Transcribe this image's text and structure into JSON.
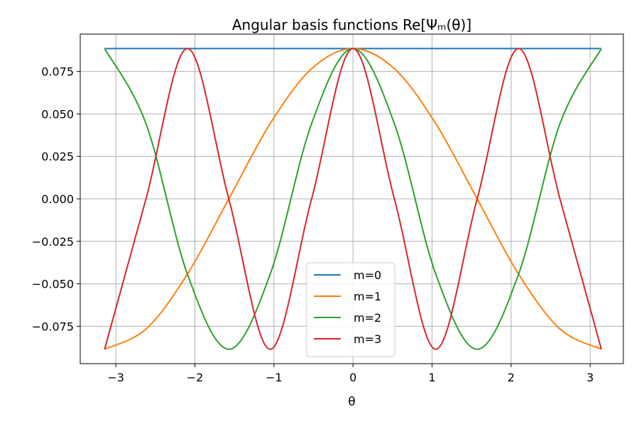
{
  "chart_data": {
    "type": "line",
    "title": "Angular basis functions  Re[Ψₘ(θ)]",
    "xlabel": "θ",
    "ylabel": "",
    "xlim": [
      -3.45,
      3.42
    ],
    "ylim": [
      -0.097,
      0.097
    ],
    "x_ticks": [
      -3,
      -2,
      -1,
      0,
      1,
      2,
      3
    ],
    "x_tick_labels": [
      "−3",
      "−2",
      "−1",
      "0",
      "1",
      "2",
      "3"
    ],
    "y_ticks": [
      -0.075,
      -0.05,
      -0.025,
      0,
      0.025,
      0.05,
      0.075
    ],
    "y_tick_labels": [
      "−0.075",
      "−0.050",
      "−0.025",
      "0.000",
      "0.025",
      "0.050",
      "0.075"
    ],
    "grid": true,
    "legend": "lower-center",
    "x": [
      -3.1416,
      -2.618,
      -2.0944,
      -1.5708,
      -1.0472,
      -0.5236,
      0,
      0.5236,
      1.0472,
      1.5708,
      2.0944,
      2.618,
      3.1416
    ],
    "series": [
      {
        "name": "m=0",
        "color": "#1f77b4",
        "values": [
          0.0885,
          0.0885,
          0.0885,
          0.0885,
          0.0885,
          0.0885,
          0.0885,
          0.0885,
          0.0885,
          0.0885,
          0.0885,
          0.0885,
          0.0885
        ]
      },
      {
        "name": "m=1",
        "color": "#ff7f0e",
        "values": [
          -0.0885,
          -0.0766,
          -0.0443,
          0,
          0.0443,
          0.0766,
          0.0885,
          0.0766,
          0.0443,
          0,
          -0.0443,
          -0.0766,
          -0.0885
        ]
      },
      {
        "name": "m=2",
        "color": "#2ca02c",
        "values": [
          0.0885,
          0.0443,
          -0.0443,
          -0.0885,
          -0.0443,
          0.0443,
          0.0885,
          0.0443,
          -0.0443,
          -0.0885,
          -0.0443,
          0.0443,
          0.0885
        ]
      },
      {
        "name": "m=3",
        "color": "#d62728",
        "values": [
          -0.0885,
          0,
          0.0885,
          0,
          -0.0885,
          0,
          0.0885,
          0,
          -0.0885,
          0,
          0.0885,
          0,
          -0.0885
        ]
      }
    ]
  }
}
